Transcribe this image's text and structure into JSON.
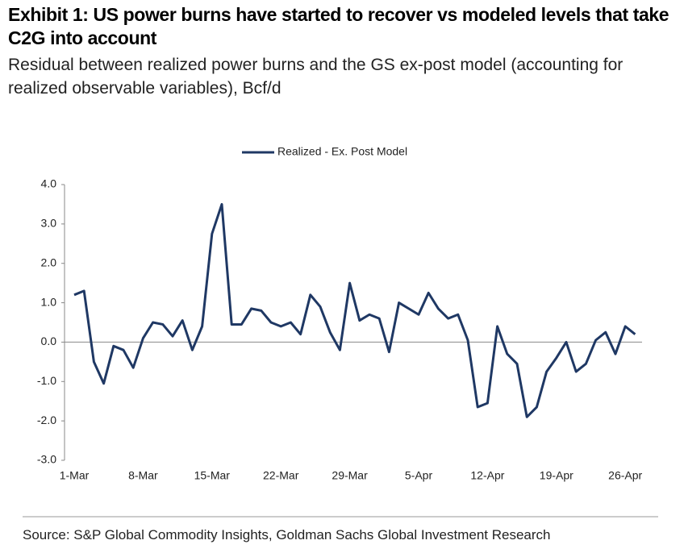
{
  "chart_data": {
    "type": "line",
    "title": "Exhibit 1: US power burns have started to recover vs modeled levels that take C2G into account",
    "subtitle": "Residual between realized power burns and the GS ex-post model (accounting for realized observable variables), Bcf/d",
    "source": "Source: S&P Global Commodity Insights, Goldman Sachs Global Investment Research",
    "categories": [
      "1-Mar",
      null,
      null,
      null,
      null,
      null,
      null,
      "8-Mar",
      null,
      null,
      null,
      null,
      null,
      null,
      "15-Mar",
      null,
      null,
      null,
      null,
      null,
      null,
      "22-Mar",
      null,
      null,
      null,
      null,
      null,
      null,
      "29-Mar",
      null,
      null,
      null,
      null,
      null,
      null,
      "5-Apr",
      null,
      null,
      null,
      null,
      null,
      null,
      "12-Apr",
      null,
      null,
      null,
      null,
      null,
      null,
      "19-Apr",
      null,
      null,
      null,
      null,
      null,
      null,
      "26-Apr",
      null
    ],
    "series": [
      {
        "name": "Realized - Ex. Post Model",
        "color": "#1f3864",
        "values": [
          1.2,
          1.3,
          -0.5,
          -1.05,
          -0.1,
          -0.2,
          -0.65,
          0.1,
          0.5,
          0.45,
          0.15,
          0.55,
          -0.2,
          0.4,
          2.75,
          3.5,
          0.45,
          0.45,
          0.85,
          0.8,
          0.5,
          0.4,
          0.5,
          0.2,
          1.2,
          0.9,
          0.25,
          -0.2,
          1.5,
          0.55,
          0.7,
          0.6,
          -0.25,
          1.0,
          0.85,
          0.7,
          1.25,
          0.85,
          0.6,
          0.7,
          0.05,
          -1.65,
          -1.55,
          0.4,
          -0.3,
          -0.55,
          -1.9,
          -1.65,
          -0.75,
          -0.4,
          0.0,
          -0.75,
          -0.55,
          0.05,
          0.25,
          -0.3,
          0.4,
          0.2
        ]
      }
    ],
    "ylim": [
      -3,
      4
    ],
    "yticks": [
      {
        "value": 4,
        "label": "4.0"
      },
      {
        "value": 3,
        "label": "3.0"
      },
      {
        "value": 2,
        "label": "2.0"
      },
      {
        "value": 1,
        "label": "1.0"
      },
      {
        "value": 0,
        "label": "0.0"
      },
      {
        "value": -1,
        "label": "-1.0"
      },
      {
        "value": -2,
        "label": "-2.0"
      },
      {
        "value": -3,
        "label": "-3.0"
      }
    ],
    "legend": "top"
  }
}
